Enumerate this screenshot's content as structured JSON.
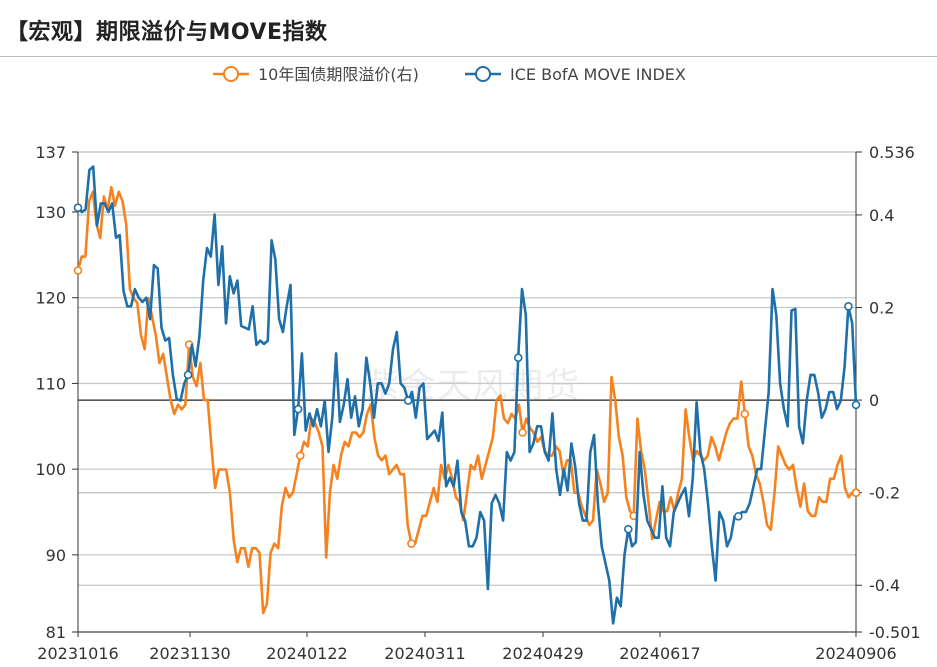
{
  "title": "【宏观】期限溢价与MOVE指数",
  "watermark": "紫金天风期货",
  "colors": {
    "orange": "#F5821F",
    "blue": "#1F6FA8",
    "grid": "#c8c8c8",
    "axis": "#333333"
  },
  "chart_data": {
    "type": "line",
    "title": "",
    "legend_position": "top",
    "x_tick_labels": [
      "20231016",
      "20231130",
      "20240122",
      "20240311",
      "20240429",
      "20240617",
      "20240906"
    ],
    "left_axis": {
      "ylim": [
        81,
        137
      ],
      "ticks": [
        81,
        90,
        100,
        110,
        120,
        130,
        137
      ]
    },
    "right_axis": {
      "ylim": [
        -0.501,
        0.536
      ],
      "ticks": [
        "-0.501",
        "-0.4",
        "-0.2",
        "0",
        "0.2",
        "0.4",
        "0.536"
      ]
    },
    "series": [
      {
        "name": "10年国债期限溢价(右)",
        "axis": "right",
        "values": [
          0.28,
          0.31,
          0.31,
          0.43,
          0.45,
          0.38,
          0.35,
          0.44,
          0.41,
          0.46,
          0.42,
          0.45,
          0.43,
          0.38,
          0.24,
          0.22,
          0.21,
          0.14,
          0.11,
          0.22,
          0.18,
          0.14,
          0.08,
          0.1,
          0.05,
          0.0,
          -0.03,
          -0.01,
          -0.02,
          -0.01,
          0.12,
          0.05,
          0.03,
          0.08,
          0.0,
          0.0,
          -0.1,
          -0.19,
          -0.15,
          -0.15,
          -0.15,
          -0.2,
          -0.3,
          -0.35,
          -0.32,
          -0.32,
          -0.36,
          -0.32,
          -0.32,
          -0.33,
          -0.46,
          -0.44,
          -0.33,
          -0.31,
          -0.32,
          -0.23,
          -0.19,
          -0.21,
          -0.2,
          -0.16,
          -0.12,
          -0.09,
          -0.1,
          -0.04,
          -0.05,
          -0.07,
          -0.1,
          -0.34,
          -0.2,
          -0.14,
          -0.17,
          -0.12,
          -0.09,
          -0.1,
          -0.07,
          -0.07,
          -0.08,
          -0.07,
          -0.03,
          -0.01,
          -0.08,
          -0.12,
          -0.13,
          -0.12,
          -0.16,
          -0.15,
          -0.14,
          -0.16,
          -0.16,
          -0.27,
          -0.31,
          -0.31,
          -0.28,
          -0.25,
          -0.25,
          -0.22,
          -0.19,
          -0.22,
          -0.14,
          -0.17,
          -0.14,
          -0.17,
          -0.21,
          -0.22,
          -0.26,
          -0.2,
          -0.14,
          -0.15,
          -0.12,
          -0.17,
          -0.14,
          -0.11,
          -0.08,
          0.0,
          0.01,
          -0.04,
          -0.05,
          -0.03,
          -0.04,
          -0.01,
          -0.07,
          -0.04,
          -0.06,
          -0.07,
          -0.09,
          -0.08,
          -0.11,
          -0.12,
          -0.12,
          -0.1,
          -0.11,
          -0.16,
          -0.13,
          -0.13,
          -0.2,
          -0.2,
          -0.23,
          -0.25,
          -0.27,
          -0.26,
          -0.15,
          -0.18,
          -0.22,
          -0.2,
          0.05,
          0.0,
          -0.08,
          -0.12,
          -0.21,
          -0.24,
          -0.25,
          -0.04,
          -0.11,
          -0.15,
          -0.22,
          -0.3,
          -0.26,
          -0.22,
          -0.24,
          -0.24,
          -0.21,
          -0.24,
          -0.2,
          -0.17,
          -0.02,
          -0.08,
          -0.13,
          -0.11,
          -0.12,
          -0.13,
          -0.12,
          -0.08,
          -0.1,
          -0.13,
          -0.1,
          -0.07,
          -0.05,
          -0.04,
          -0.04,
          0.04,
          -0.03,
          -0.1,
          -0.12,
          -0.16,
          -0.18,
          -0.22,
          -0.27,
          -0.28,
          -0.2,
          -0.1,
          -0.12,
          -0.14,
          -0.15,
          -0.14,
          -0.19,
          -0.23,
          -0.18,
          -0.24,
          -0.25,
          -0.25,
          -0.21,
          -0.22,
          -0.22,
          -0.17,
          -0.17,
          -0.14,
          -0.12,
          -0.19,
          -0.21,
          -0.2,
          -0.2
        ]
      },
      {
        "name": "ICE BofA MOVE INDEX",
        "axis": "left",
        "values": [
          130.5,
          130.0,
          130.3,
          134.9,
          135.3,
          128.4,
          131.0,
          131.0,
          130.0,
          131.0,
          127.0,
          127.3,
          120.8,
          119.0,
          119.0,
          121.0,
          120.0,
          119.5,
          120.0,
          117.5,
          123.8,
          123.4,
          116.5,
          115.0,
          115.3,
          111.0,
          108.2,
          108.0,
          110.0,
          111.0,
          114.5,
          112.0,
          115.5,
          122.0,
          125.8,
          124.8,
          129.7,
          121.5,
          126.0,
          117.0,
          122.5,
          120.5,
          122.0,
          116.7,
          116.5,
          116.3,
          119.0,
          114.5,
          115.0,
          114.6,
          115.0,
          126.7,
          124.5,
          117.5,
          116.0,
          119.0,
          121.5,
          104.0,
          107.0,
          113.5,
          104.5,
          106.5,
          105.0,
          107.0,
          105.0,
          108.0,
          102.0,
          106.0,
          113.5,
          105.5,
          107.5,
          110.5,
          106.0,
          108.5,
          105.0,
          107.0,
          113.0,
          110.0,
          106.0,
          110.0,
          110.0,
          108.8,
          110.0,
          114.0,
          116.0,
          110.0,
          109.5,
          108.0,
          109.0,
          106.0,
          109.5,
          110.0,
          103.5,
          104.0,
          104.5,
          103.3,
          106.6,
          98.0,
          99.0,
          98.0,
          101.0,
          95.0,
          94.0,
          91.0,
          91.0,
          92.0,
          95.0,
          94.0,
          86.0,
          96.0,
          97.0,
          96.0,
          94.0,
          102.0,
          101.0,
          102.0,
          113.0,
          121.0,
          118.0,
          102.0,
          103.0,
          105.0,
          105.0,
          102.0,
          101.0,
          106.5,
          100.0,
          97.0,
          100.0,
          97.5,
          103.0,
          100.3,
          96.0,
          94.0,
          94.0,
          102.0,
          104.0,
          96.0,
          91.0,
          89.0,
          87.0,
          82.0,
          85.0,
          84.0,
          90.0,
          93.0,
          91.0,
          91.5,
          102.0,
          97.0,
          94.0,
          93.0,
          92.0,
          92.0,
          98.0,
          92.0,
          91.0,
          95.0,
          96.0,
          97.0,
          97.8,
          94.5,
          99.0,
          107.8,
          102.0,
          100.0,
          96.0,
          91.0,
          87.0,
          95.0,
          94.0,
          91.0,
          92.0,
          94.5,
          94.5,
          95.0,
          95.0,
          96.0,
          98.0,
          100.0,
          100.0,
          104.5,
          109.0,
          121.0,
          118.0,
          110.0,
          107.0,
          105.0,
          118.5,
          118.7,
          105.0,
          103.0,
          108.0,
          111.0,
          111.0,
          109.0,
          106.0,
          107.0,
          109.0,
          109.0,
          107.0,
          108.0,
          112.0,
          119.0,
          117.0,
          107.5
        ]
      }
    ]
  }
}
